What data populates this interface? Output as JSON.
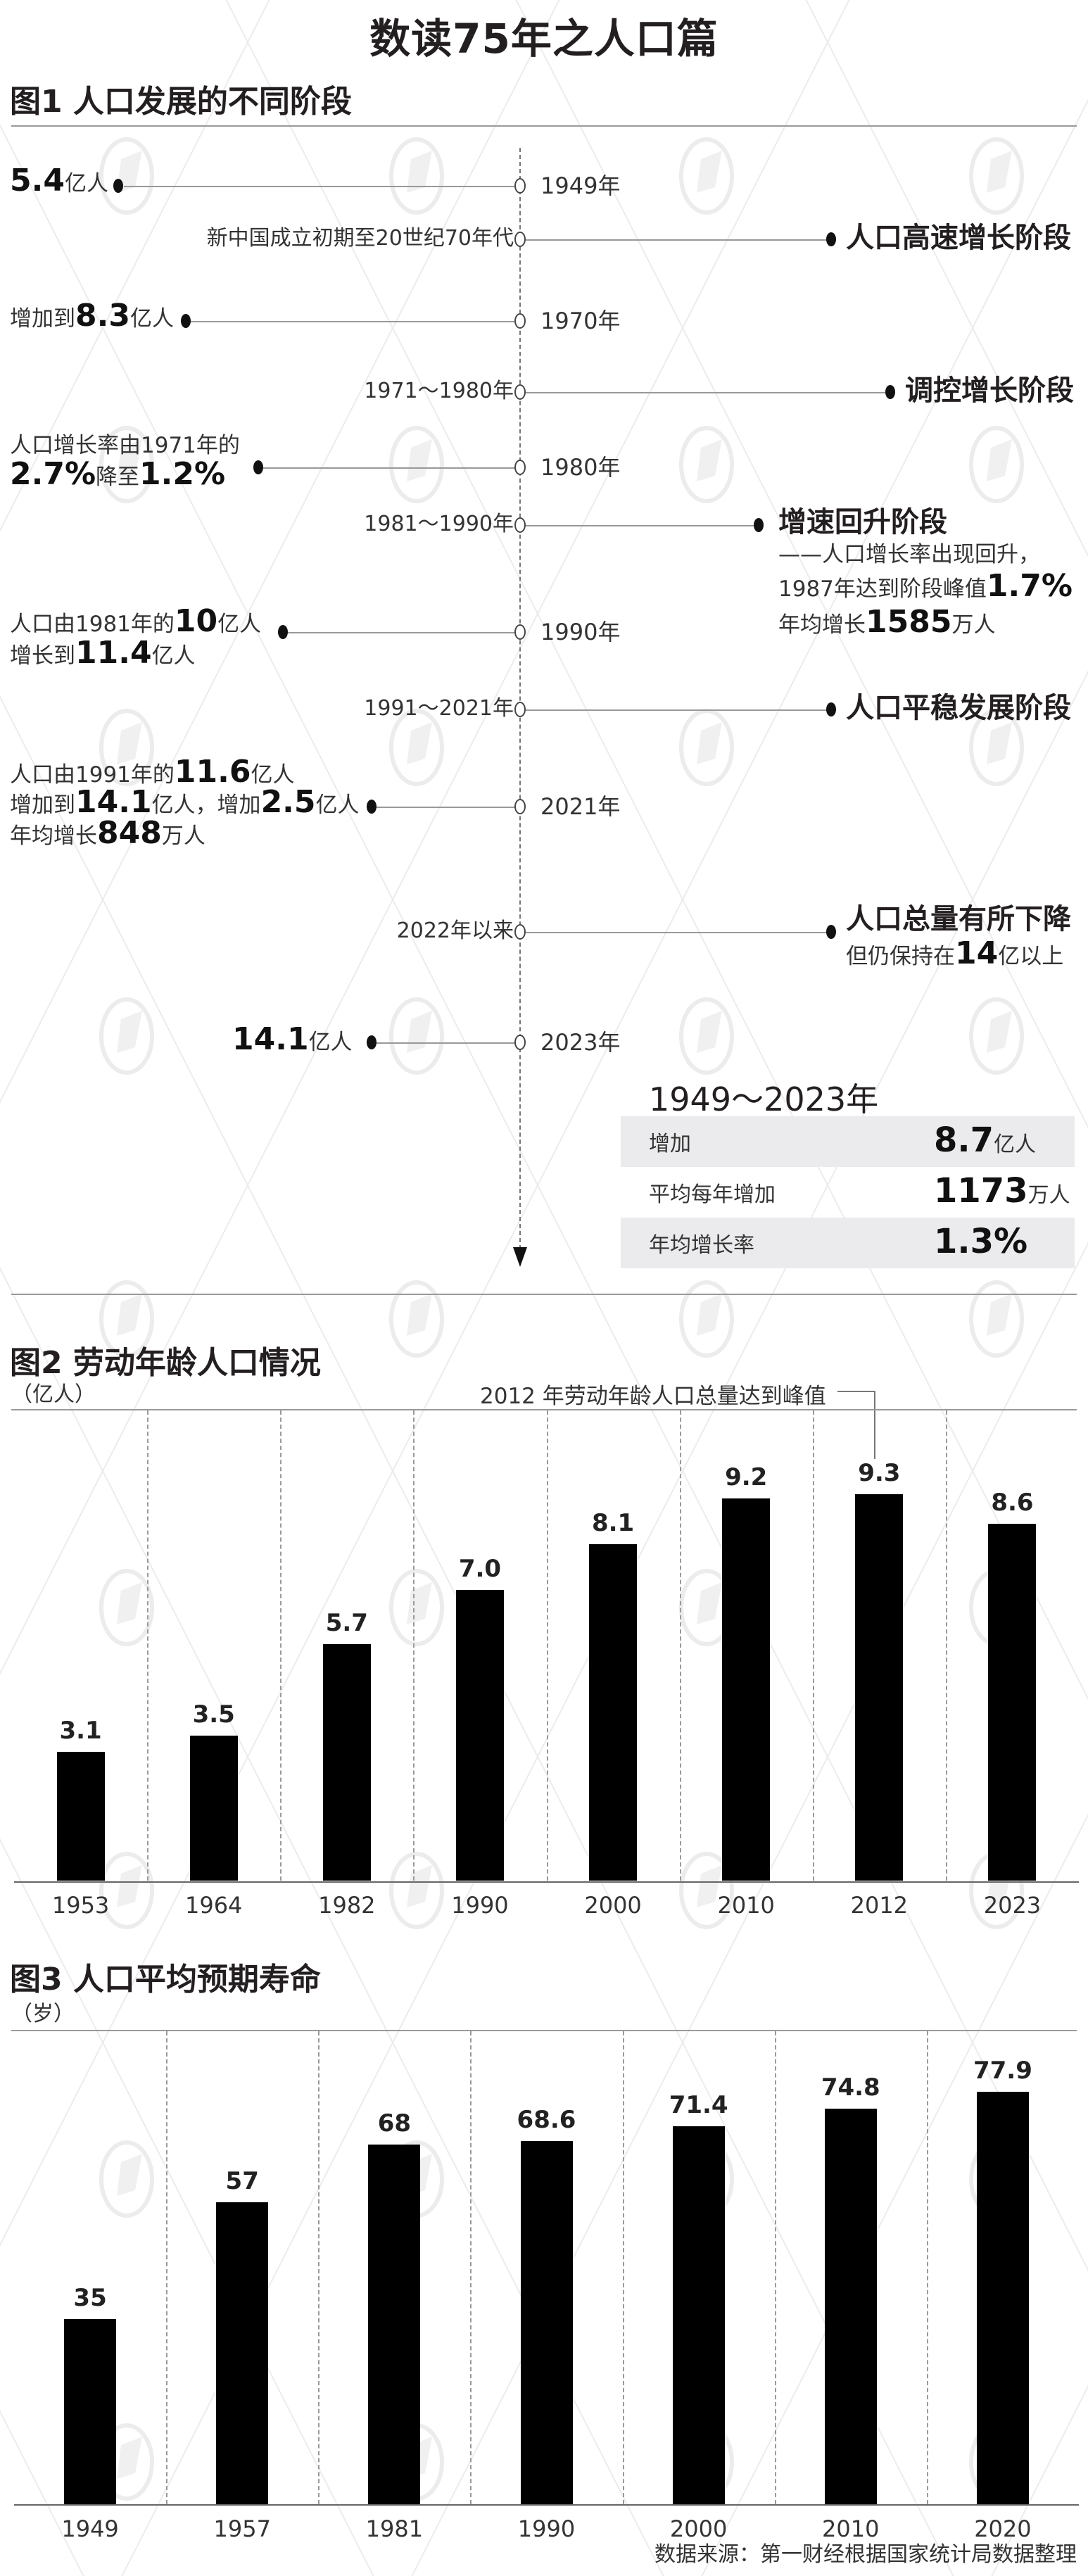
{
  "title": "数读75年之人口篇",
  "colors": {
    "bar": "#000000",
    "text": "#231f20",
    "rule": "#9a9a9a",
    "summary_bg": "#ebebed",
    "watermark": "#e6e6e6"
  },
  "fig1": {
    "title": "图1 人口发展的不同阶段",
    "events": [
      {
        "year": "1949年",
        "note_parts": [
          {
            "t": "5.4",
            "b": true
          },
          {
            "t": "亿人"
          }
        ]
      },
      {
        "year": "1970年",
        "note_parts": [
          {
            "t": "增加到"
          },
          {
            "t": "8.3",
            "b": true
          },
          {
            "t": "亿人"
          }
        ]
      },
      {
        "year": "1980年",
        "line1": "人口增长率由1971年的",
        "line2_parts": [
          {
            "t": "2.7%",
            "b": true
          },
          {
            "t": "降至"
          },
          {
            "t": "1.2%",
            "b": true
          }
        ]
      },
      {
        "year": "1990年",
        "line1_parts": [
          {
            "t": "人口由1981年的"
          },
          {
            "t": "10",
            "b": true
          },
          {
            "t": "亿人"
          }
        ],
        "line2_parts": [
          {
            "t": "增长到"
          },
          {
            "t": "11.4",
            "b": true
          },
          {
            "t": "亿人"
          }
        ]
      },
      {
        "year": "2021年",
        "line1_parts": [
          {
            "t": "人口由1991年的"
          },
          {
            "t": "11.6",
            "b": true
          },
          {
            "t": "亿人"
          }
        ],
        "line2_parts": [
          {
            "t": "增加到"
          },
          {
            "t": "14.1",
            "b": true
          },
          {
            "t": "亿人，增加"
          },
          {
            "t": "2.5",
            "b": true
          },
          {
            "t": "亿人"
          }
        ],
        "line3_parts": [
          {
            "t": "年均增长"
          },
          {
            "t": "848",
            "b": true
          },
          {
            "t": "万人"
          }
        ]
      },
      {
        "year": "2023年",
        "note_parts": [
          {
            "t": "14.1",
            "b": true
          },
          {
            "t": "亿人"
          }
        ]
      }
    ],
    "stages": [
      {
        "period": "新中国成立初期至20世纪70年代",
        "name": "人口高速增长阶段"
      },
      {
        "period": "1971～1980年",
        "name": "调控增长阶段"
      },
      {
        "period": "1981～1990年",
        "name": "增速回升阶段",
        "desc1": "——人口增长率出现回升，",
        "desc2_parts": [
          {
            "t": "1987年达到阶段峰值"
          },
          {
            "t": "1.7%",
            "b": true
          }
        ],
        "desc3_parts": [
          {
            "t": "年均增长"
          },
          {
            "t": "1585",
            "b": true
          },
          {
            "t": "万人"
          }
        ]
      },
      {
        "period": "1991～2021年",
        "name": "人口平稳发展阶段"
      },
      {
        "period": "2022年以来",
        "name": "人口总量有所下降",
        "desc_parts": [
          {
            "t": "但仍保持在"
          },
          {
            "t": "14",
            "b": true
          },
          {
            "t": "亿以上"
          }
        ]
      }
    ],
    "summary": {
      "title": "1949～2023年",
      "rows": [
        {
          "label": "增加",
          "value": "8.7",
          "unit": "亿人"
        },
        {
          "label": "平均每年增加",
          "value": "1173",
          "unit": "万人"
        },
        {
          "label": "年均增长率",
          "value": "1.3%",
          "unit": ""
        }
      ]
    }
  },
  "chart_data": [
    {
      "type": "bar",
      "title": "图2 劳动年龄人口情况",
      "ylabel": "（亿人）",
      "xlabel": "",
      "categories": [
        "1953",
        "1964",
        "1982",
        "1990",
        "2000",
        "2010",
        "2012",
        "2023"
      ],
      "values": [
        3.1,
        3.5,
        5.7,
        7.0,
        8.1,
        9.2,
        9.3,
        8.6
      ],
      "value_labels": [
        "3.1",
        "3.5",
        "5.7",
        "7.0",
        "8.1",
        "9.2",
        "9.3",
        "8.6"
      ],
      "annotations": [
        {
          "category": "2012",
          "text": "2012 年劳动年龄人口总量达到峰值"
        }
      ],
      "ylim": [
        0,
        10
      ],
      "grid": "vertical dashed separators",
      "legend": "none"
    },
    {
      "type": "bar",
      "title": "图3 人口平均预期寿命",
      "ylabel": "（岁）",
      "xlabel": "",
      "categories": [
        "1949",
        "1957",
        "1981",
        "1990",
        "2000",
        "2010",
        "2020"
      ],
      "values": [
        35,
        57,
        68,
        68.6,
        71.4,
        74.8,
        77.9
      ],
      "value_labels": [
        "35",
        "57",
        "68",
        "68.6",
        "71.4",
        "74.8",
        "77.9"
      ],
      "ylim": [
        0,
        85
      ],
      "grid": "vertical dashed separators",
      "legend": "none"
    }
  ],
  "source": "数据来源：第一财经根据国家统计局数据整理"
}
